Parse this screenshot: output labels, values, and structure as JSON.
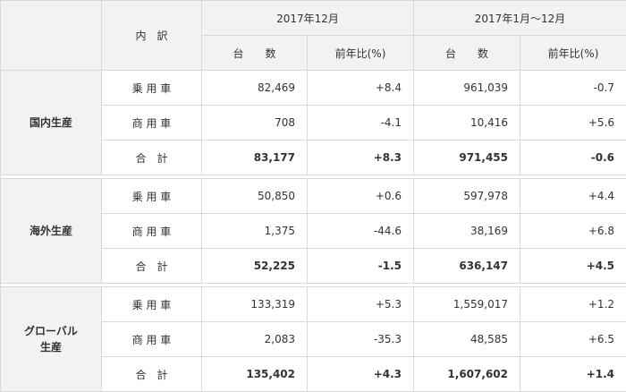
{
  "header": {
    "breakdown_label": "内　訳",
    "period1": "2017年12月",
    "period2": "2017年1月～12月",
    "units_label": "台　　数",
    "yoy_label": "前年比(%)"
  },
  "groups": [
    {
      "name": "国内生産",
      "rows": [
        {
          "label": "乗 用 車",
          "units1": "82,469",
          "yoy1": "+8.4",
          "units2": "961,039",
          "yoy2": "-0.7"
        },
        {
          "label": "商 用 車",
          "units1": "708",
          "yoy1": "-4.1",
          "units2": "10,416",
          "yoy2": "+5.6"
        },
        {
          "label": "合　計",
          "units1": "83,177",
          "yoy1": "+8.3",
          "units2": "971,455",
          "yoy2": "-0.6"
        }
      ]
    },
    {
      "name": "海外生産",
      "rows": [
        {
          "label": "乗 用 車",
          "units1": "50,850",
          "yoy1": "+0.6",
          "units2": "597,978",
          "yoy2": "+4.4"
        },
        {
          "label": "商 用 車",
          "units1": "1,375",
          "yoy1": "-44.6",
          "units2": "38,169",
          "yoy2": "+6.8"
        },
        {
          "label": "合　計",
          "units1": "52,225",
          "yoy1": "-1.5",
          "units2": "636,147",
          "yoy2": "+4.5"
        }
      ]
    },
    {
      "name_line1": "グローバル",
      "name_line2": "生産",
      "rows": [
        {
          "label": "乗 用 車",
          "units1": "133,319",
          "yoy1": "+5.3",
          "units2": "1,559,017",
          "yoy2": "+1.2"
        },
        {
          "label": "商 用 車",
          "units1": "2,083",
          "yoy1": "-35.3",
          "units2": "48,585",
          "yoy2": "+6.5"
        },
        {
          "label": "合　計",
          "units1": "135,402",
          "yoy1": "+4.3",
          "units2": "1,607,602",
          "yoy2": "+1.4"
        }
      ]
    }
  ]
}
